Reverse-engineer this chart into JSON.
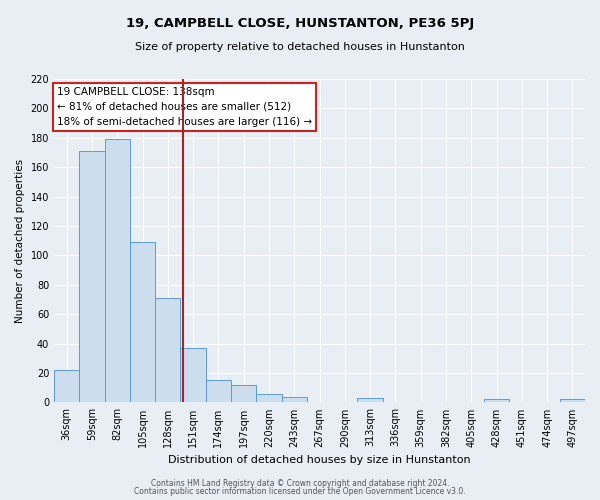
{
  "title": "19, CAMPBELL CLOSE, HUNSTANTON, PE36 5PJ",
  "subtitle": "Size of property relative to detached houses in Hunstanton",
  "xlabel": "Distribution of detached houses by size in Hunstanton",
  "ylabel": "Number of detached properties",
  "bar_labels": [
    "36sqm",
    "59sqm",
    "82sqm",
    "105sqm",
    "128sqm",
    "151sqm",
    "174sqm",
    "197sqm",
    "220sqm",
    "243sqm",
    "267sqm",
    "290sqm",
    "313sqm",
    "336sqm",
    "359sqm",
    "382sqm",
    "405sqm",
    "428sqm",
    "451sqm",
    "474sqm",
    "497sqm"
  ],
  "bar_heights": [
    22,
    171,
    179,
    109,
    71,
    37,
    15,
    12,
    6,
    4,
    0,
    0,
    3,
    0,
    0,
    0,
    0,
    2,
    0,
    0,
    2
  ],
  "bar_color": "#ccdded",
  "bar_edge_color": "#5b9bd5",
  "ylim": [
    0,
    220
  ],
  "yticks": [
    0,
    20,
    40,
    60,
    80,
    100,
    120,
    140,
    160,
    180,
    200,
    220
  ],
  "vline_x": 4.62,
  "vline_color": "#aa2222",
  "annotation_title": "19 CAMPBELL CLOSE: 138sqm",
  "annotation_line1": "← 81% of detached houses are smaller (512)",
  "annotation_line2": "18% of semi-detached houses are larger (116) →",
  "annotation_box_facecolor": "#ffffff",
  "annotation_box_edgecolor": "#cc2222",
  "footer1": "Contains HM Land Registry data © Crown copyright and database right 2024.",
  "footer2": "Contains public sector information licensed under the Open Government Licence v3.0.",
  "bg_color": "#e8eef4",
  "plot_bg_color": "#e8eef4",
  "grid_color": "#ffffff"
}
